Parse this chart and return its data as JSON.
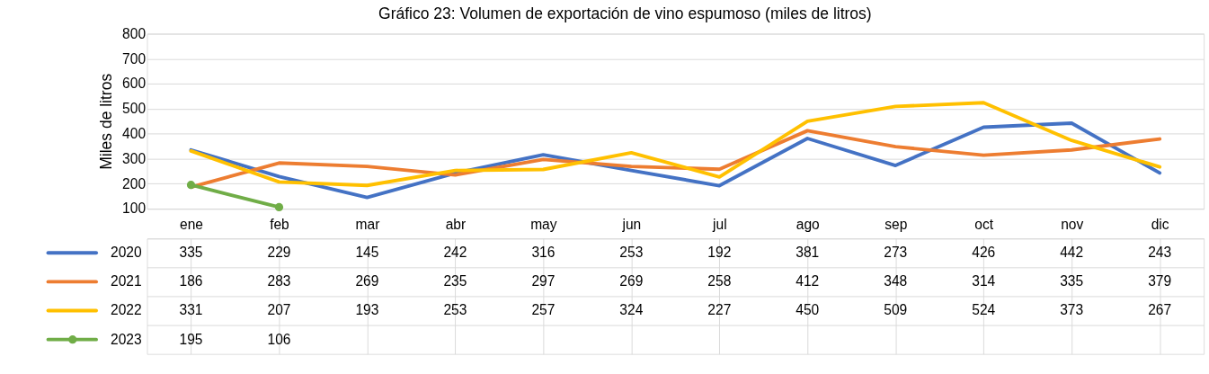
{
  "chart_data": {
    "type": "line",
    "title": "Gráfico 23: Volumen de exportación de vino espumoso (miles de litros)",
    "ylabel": "Miles de litros",
    "categories": [
      "ene",
      "feb",
      "mar",
      "abr",
      "may",
      "jun",
      "jul",
      "ago",
      "sep",
      "oct",
      "nov",
      "dic"
    ],
    "series": [
      {
        "name": "2020",
        "color": "#4472c4",
        "marker": "none",
        "values": [
          335,
          229,
          145,
          242,
          316,
          253,
          192,
          381,
          273,
          426,
          442,
          243
        ]
      },
      {
        "name": "2021",
        "color": "#ed7d31",
        "marker": "none",
        "values": [
          186,
          283,
          269,
          235,
          297,
          269,
          258,
          412,
          348,
          314,
          335,
          379
        ]
      },
      {
        "name": "2022",
        "color": "#ffc000",
        "marker": "none",
        "values": [
          331,
          207,
          193,
          253,
          257,
          324,
          227,
          450,
          509,
          524,
          373,
          267
        ]
      },
      {
        "name": "2023",
        "color": "#70ad47",
        "marker": "circle",
        "values": [
          195,
          106,
          null,
          null,
          null,
          null,
          null,
          null,
          null,
          null,
          null,
          null
        ]
      }
    ],
    "ylim": [
      100,
      800
    ],
    "yticks": [
      100,
      200,
      300,
      400,
      500,
      600,
      700,
      800
    ],
    "grid": "y",
    "legend": "bottom",
    "data_labels": true,
    "line_style": "solid"
  }
}
